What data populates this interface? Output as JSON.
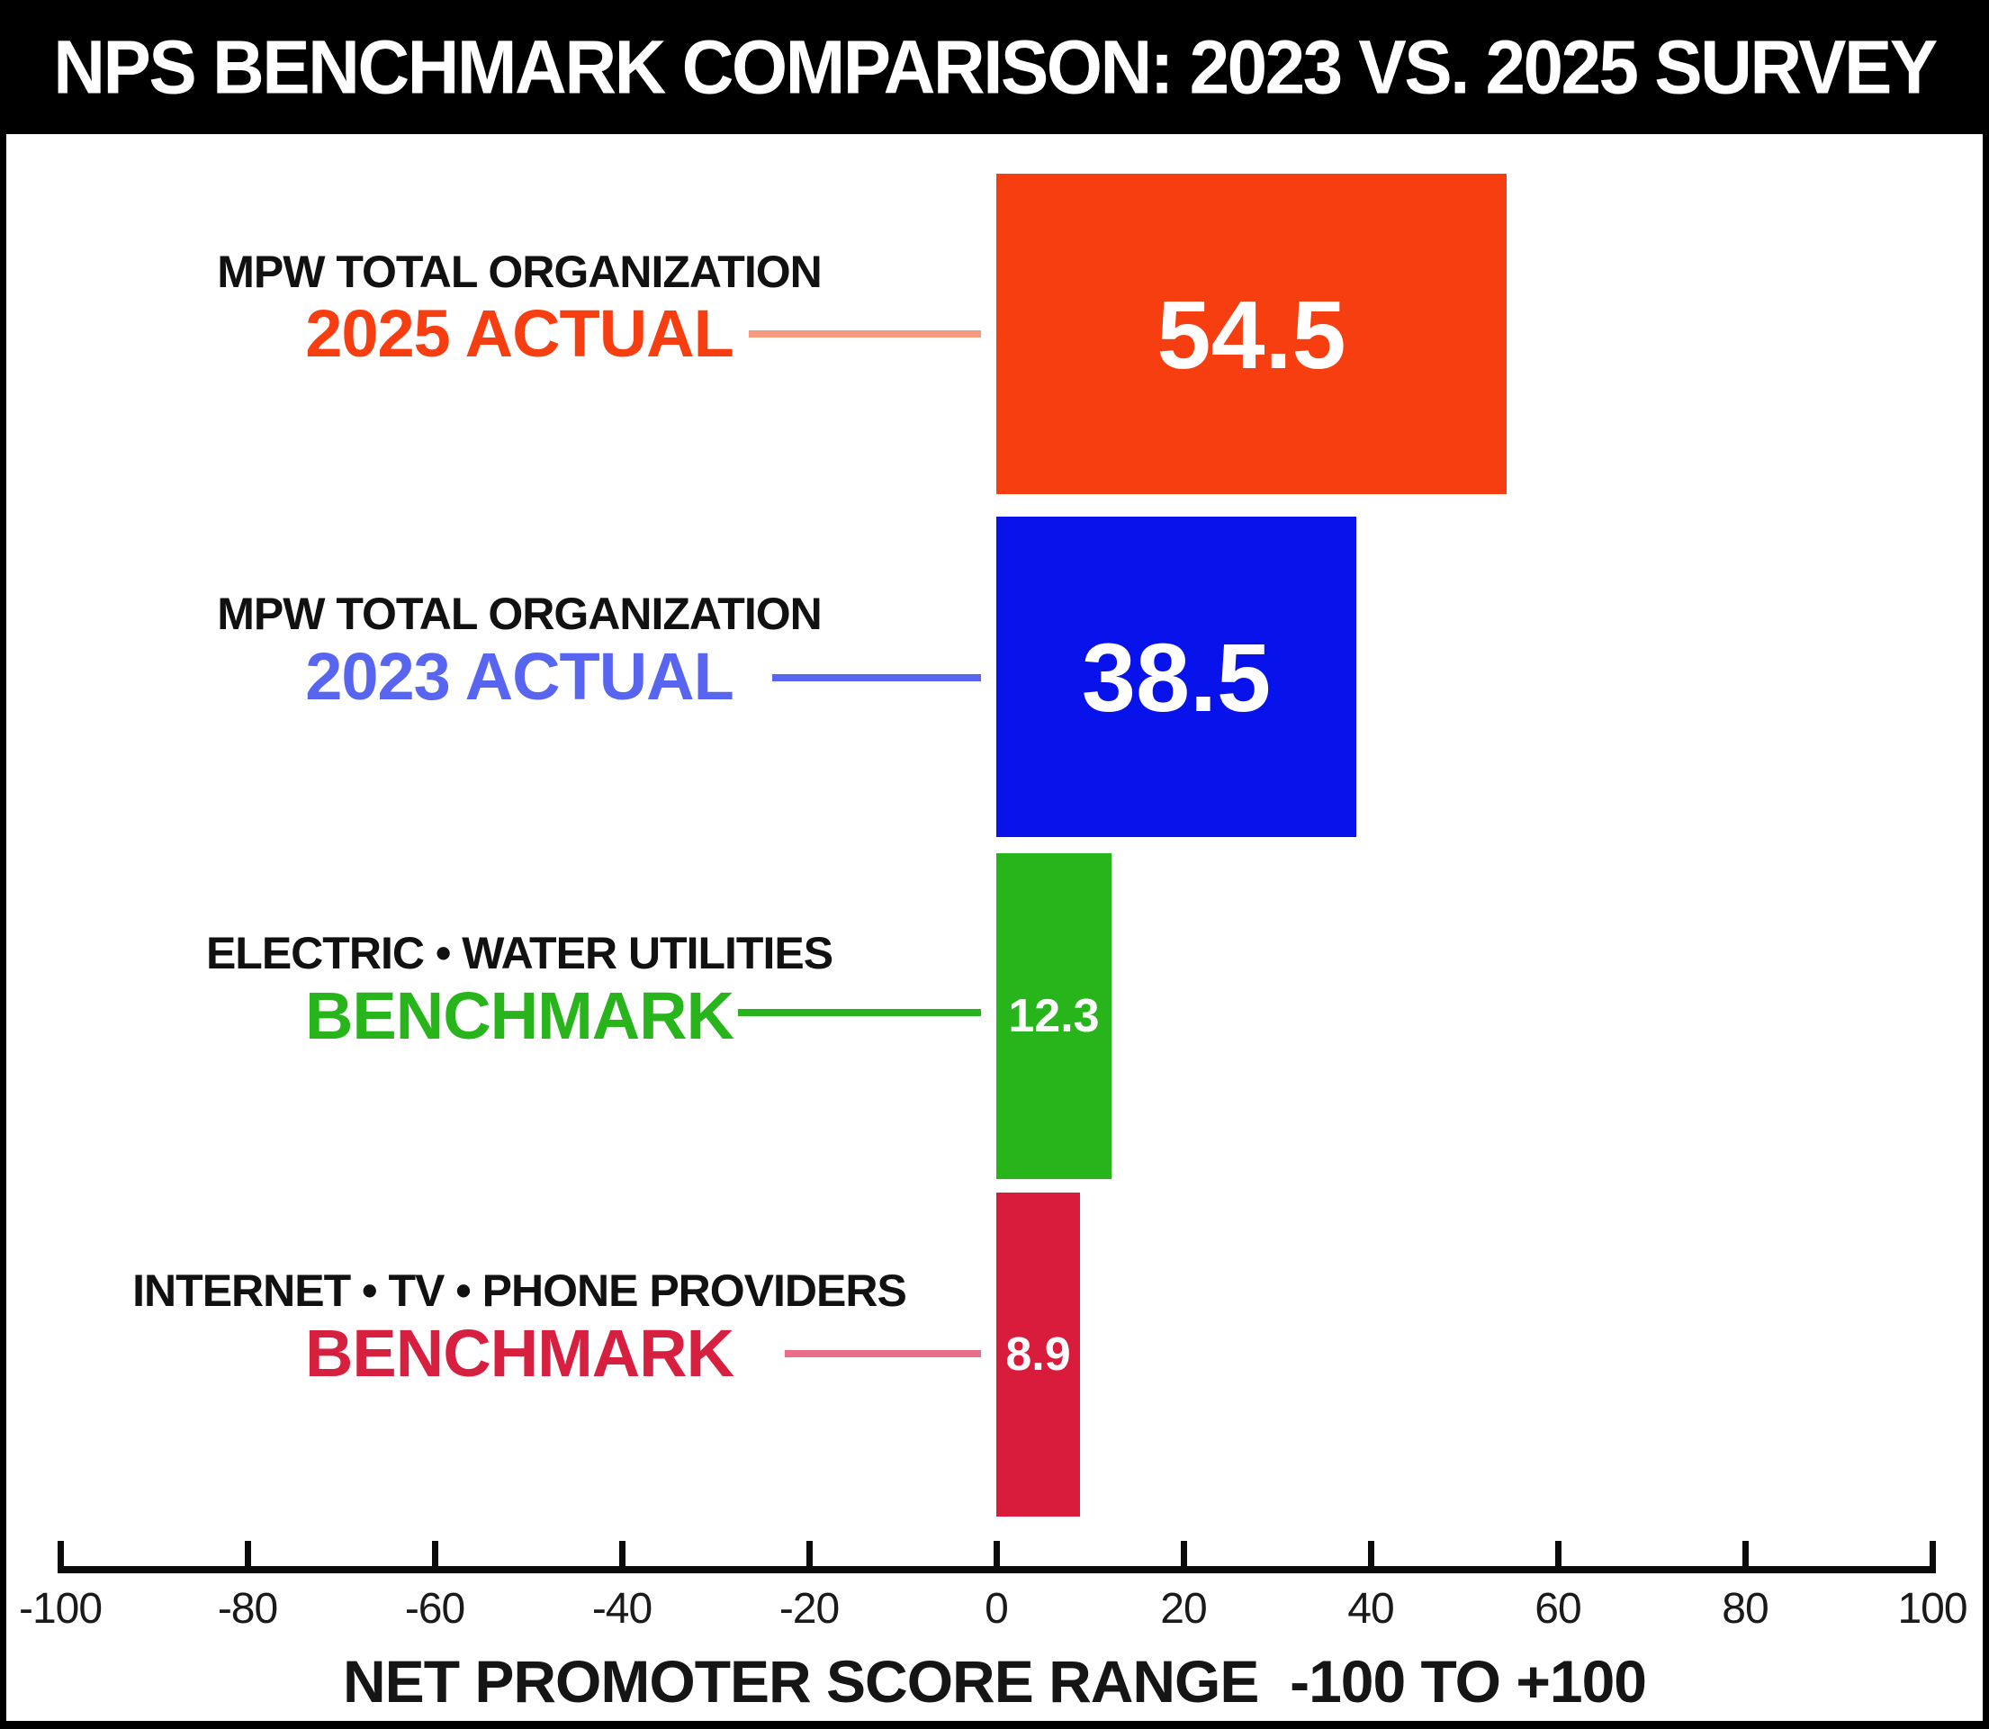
{
  "title": "NPS BENCHMARK COMPARISON: 2023 VS. 2025 SURVEY",
  "chart_data": {
    "type": "bar",
    "orientation": "horizontal",
    "title": "NPS BENCHMARK COMPARISON: 2023 VS. 2025 SURVEY",
    "xlabel": "NET PROMOTER SCORE RANGE  -100 TO +100",
    "xlim": [
      -100,
      100
    ],
    "x_ticks": [
      -100,
      -80,
      -60,
      -40,
      -20,
      0,
      20,
      40,
      60,
      80,
      100
    ],
    "grid": false,
    "legend": false,
    "rows": [
      {
        "label_line1": "MPW TOTAL ORGANIZATION",
        "label_line2": "2025 ACTUAL",
        "value": 54.5,
        "value_label": "54.5",
        "bar_color": "#f63e11",
        "label2_color": "#f63e11",
        "leader_color": "#f79a80"
      },
      {
        "label_line1": "MPW TOTAL ORGANIZATION",
        "label_line2": "2023 ACTUAL",
        "value": 38.5,
        "value_label": "38.5",
        "bar_color": "#0813eb",
        "label2_color": "#5865f0",
        "leader_color": "#5865f0"
      },
      {
        "label_line1": "ELECTRIC • WATER UTILITIES",
        "label_line2": "BENCHMARK",
        "value": 12.3,
        "value_label": "12.3",
        "bar_color": "#28b51c",
        "label2_color": "#28b51c",
        "leader_color": "#28b51c"
      },
      {
        "label_line1": "INTERNET • TV • PHONE PROVIDERS",
        "label_line2": "BENCHMARK",
        "value": 8.9,
        "value_label": "8.9",
        "bar_color": "#d91c3c",
        "label2_color": "#d7203f",
        "leader_color": "#ea6e8c"
      }
    ]
  },
  "axis": {
    "ticks": [
      "-100",
      "-80",
      "-60",
      "-40",
      "-20",
      "0",
      "20",
      "40",
      "60",
      "80",
      "100"
    ],
    "label": "NET PROMOTER SCORE RANGE  -100 TO +100"
  }
}
